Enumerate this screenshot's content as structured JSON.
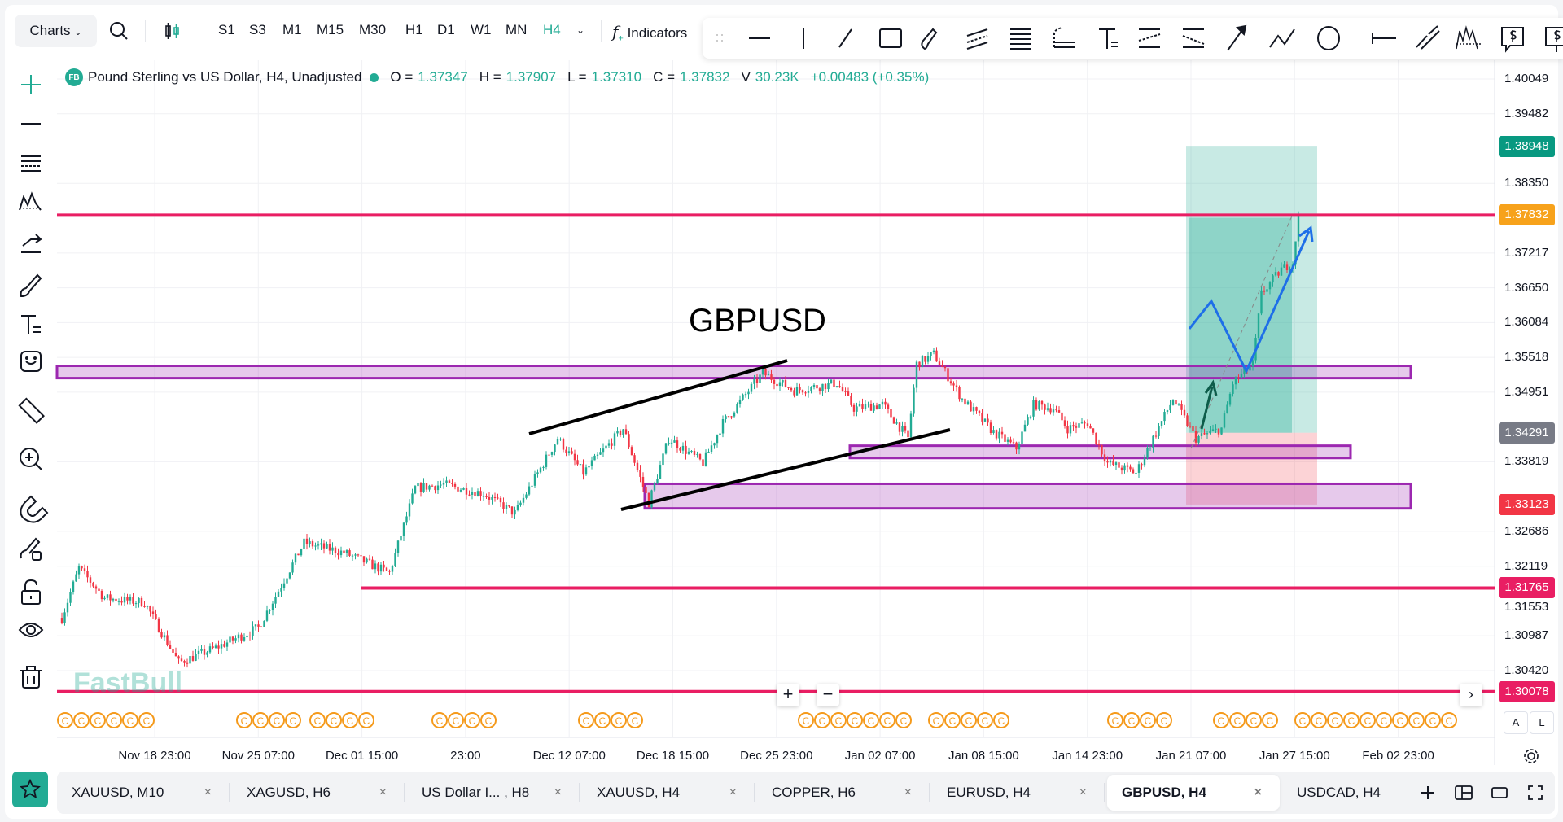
{
  "toolbar": {
    "charts_label": "Charts",
    "timeframes": [
      "S1",
      "S3",
      "M1",
      "M15",
      "M30",
      "H1",
      "D1",
      "W1",
      "MN",
      "H4"
    ],
    "active_timeframe": "H4",
    "indicators_label": "Indicators"
  },
  "legend": {
    "badge": "FB",
    "title": "Pound Sterling vs US Dollar, H4, Unadjusted",
    "o_label": "O =",
    "o": "1.37347",
    "h_label": "H =",
    "h": "1.37907",
    "l_label": "L =",
    "l": "1.37310",
    "c_label": "C =",
    "c": "1.37832",
    "v_label": "V",
    "v": "30.23K",
    "change": "+0.00483 (+0.35%)"
  },
  "annotation_text": "GBPUSD",
  "watermark": "FastBull",
  "event_marker_label": "C",
  "colors": {
    "up": "#22ab94",
    "down": "#f23645",
    "accent": "#22ab94",
    "hline": "#e91e63",
    "zone": "#9c27b0"
  },
  "chart_data": {
    "type": "candlestick",
    "symbol": "GBPUSD",
    "timeframe": "H4",
    "ylim": [
      1.2985,
      1.4028
    ],
    "price_ticks": [
      "1.40049",
      "1.39482",
      "1.38350",
      "1.37217",
      "1.36650",
      "1.36084",
      "1.35518",
      "1.34951",
      "1.33819",
      "1.32686",
      "1.32119",
      "1.31553",
      "1.30987",
      "1.30420"
    ],
    "price_badges": [
      {
        "value": "1.38948",
        "color": "#089981"
      },
      {
        "value": "1.37832",
        "color": "#f7a21b"
      },
      {
        "value": "1.34291",
        "color": "#787b86"
      },
      {
        "value": "1.33123",
        "color": "#f23645"
      },
      {
        "value": "1.31765",
        "color": "#e91e63"
      },
      {
        "value": "1.30078",
        "color": "#e91e63"
      }
    ],
    "time_labels": [
      "Nov 18 23:00",
      "Nov 25 07:00",
      "Dec 01 15:00",
      "23:00",
      "Dec 12 07:00",
      "Dec 18 15:00",
      "Dec 25 23:00",
      "Jan 02 07:00",
      "Jan 08 15:00",
      "Jan 14 23:00",
      "Jan 21 07:00",
      "Jan 27 15:00",
      "Feb 02 23:00"
    ],
    "bars_per_label": 36.3,
    "close_path": [
      [
        0,
        1.3128
      ],
      [
        6,
        1.3209
      ],
      [
        15,
        1.316
      ],
      [
        29,
        1.3153
      ],
      [
        41,
        1.3055
      ],
      [
        54,
        1.3079
      ],
      [
        69,
        1.3112
      ],
      [
        85,
        1.325
      ],
      [
        99,
        1.3234
      ],
      [
        115,
        1.3201
      ],
      [
        124,
        1.3339
      ],
      [
        134,
        1.3345
      ],
      [
        148,
        1.333
      ],
      [
        159,
        1.3298
      ],
      [
        174,
        1.342
      ],
      [
        183,
        1.3364
      ],
      [
        197,
        1.3436
      ],
      [
        206,
        1.3315
      ],
      [
        213,
        1.342
      ],
      [
        225,
        1.338
      ],
      [
        232,
        1.3445
      ],
      [
        246,
        1.3526
      ],
      [
        257,
        1.3498
      ],
      [
        272,
        1.351
      ],
      [
        278,
        1.3469
      ],
      [
        288,
        1.3475
      ],
      [
        297,
        1.342
      ],
      [
        300,
        1.3541
      ],
      [
        306,
        1.3557
      ],
      [
        316,
        1.3484
      ],
      [
        327,
        1.343
      ],
      [
        335,
        1.3404
      ],
      [
        341,
        1.3475
      ],
      [
        348,
        1.3469
      ],
      [
        353,
        1.3436
      ],
      [
        360,
        1.3445
      ],
      [
        367,
        1.338
      ],
      [
        377,
        1.3364
      ],
      [
        383,
        1.342
      ],
      [
        390,
        1.3484
      ],
      [
        398,
        1.342
      ],
      [
        407,
        1.3436
      ],
      [
        411,
        1.351
      ],
      [
        418,
        1.3541
      ],
      [
        421,
        1.3655
      ],
      [
        428,
        1.3695
      ],
      [
        432,
        1.3707
      ],
      [
        434,
        1.3783
      ]
    ],
    "horizontal_lines": [
      1.37832,
      1.31765,
      1.30078
    ],
    "zones": [
      [
        1.3538,
        1.3518
      ],
      [
        1.3408,
        1.3388
      ],
      [
        1.3346,
        1.3306
      ]
    ],
    "position": {
      "entry": 1.34291,
      "target": 1.38948,
      "stop": 1.33123
    }
  },
  "tabs": [
    {
      "label": "XAUUSD, M10"
    },
    {
      "label": "XAGUSD, H6"
    },
    {
      "label": "US Dollar I... , H8"
    },
    {
      "label": "XAUUSD, H4"
    },
    {
      "label": "COPPER, H6"
    },
    {
      "label": "EURUSD, H4"
    },
    {
      "label": "GBPUSD, H4",
      "active": true
    },
    {
      "label": "USDCAD, H4"
    }
  ],
  "tab_close": "×",
  "axis_buttons": {
    "auto": "A",
    "log": "L"
  },
  "zoom_in": "+",
  "zoom_out": "−"
}
